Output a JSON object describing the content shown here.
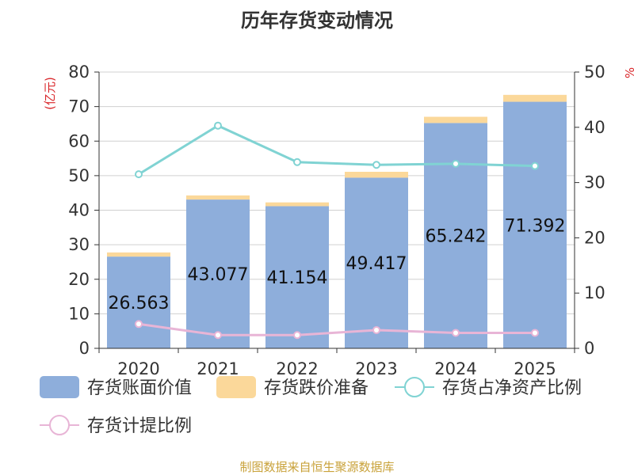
{
  "chart_data": {
    "type": "bar+line",
    "title": "历年存货变动情况",
    "categories": [
      "2020",
      "2021",
      "2022",
      "2023",
      "2024",
      "2025"
    ],
    "left_axis": {
      "label": "(亿元)",
      "ylim": [
        0,
        80
      ],
      "ticks": [
        0,
        10,
        20,
        30,
        40,
        50,
        60,
        70,
        80
      ]
    },
    "right_axis": {
      "label": "%",
      "ylim": [
        0,
        50
      ],
      "ticks": [
        0,
        10,
        20,
        30,
        40,
        50
      ]
    },
    "series": [
      {
        "name": "存货账面价值",
        "type": "bar",
        "axis": "left",
        "stack": "inv",
        "color": "#8eaedb",
        "values": [
          26.563,
          43.077,
          41.154,
          49.417,
          65.242,
          71.392
        ],
        "labels": [
          "26.563",
          "43.077",
          "41.154",
          "49.417",
          "65.242",
          "71.392"
        ]
      },
      {
        "name": "存货跌价准备",
        "type": "bar",
        "axis": "left",
        "stack": "inv",
        "color": "#fbd89a",
        "values": [
          1.2,
          1.2,
          1.1,
          1.7,
          1.8,
          2.0
        ]
      },
      {
        "name": "存货占净资产比例",
        "type": "line",
        "axis": "right",
        "color": "#80d3d3",
        "values": [
          31.5,
          40.3,
          33.7,
          33.2,
          33.4,
          33.0
        ]
      },
      {
        "name": "存货计提比例",
        "type": "line",
        "axis": "right",
        "color": "#e8b5d6",
        "values": [
          4.4,
          2.4,
          2.4,
          3.3,
          2.8,
          2.8
        ]
      }
    ]
  },
  "footer": {
    "source": "制图数据来自恒生聚源数据库"
  },
  "colors": {
    "axis_unit": "#d9262a",
    "grid": "#d0d0d0",
    "axis": "#333333"
  }
}
